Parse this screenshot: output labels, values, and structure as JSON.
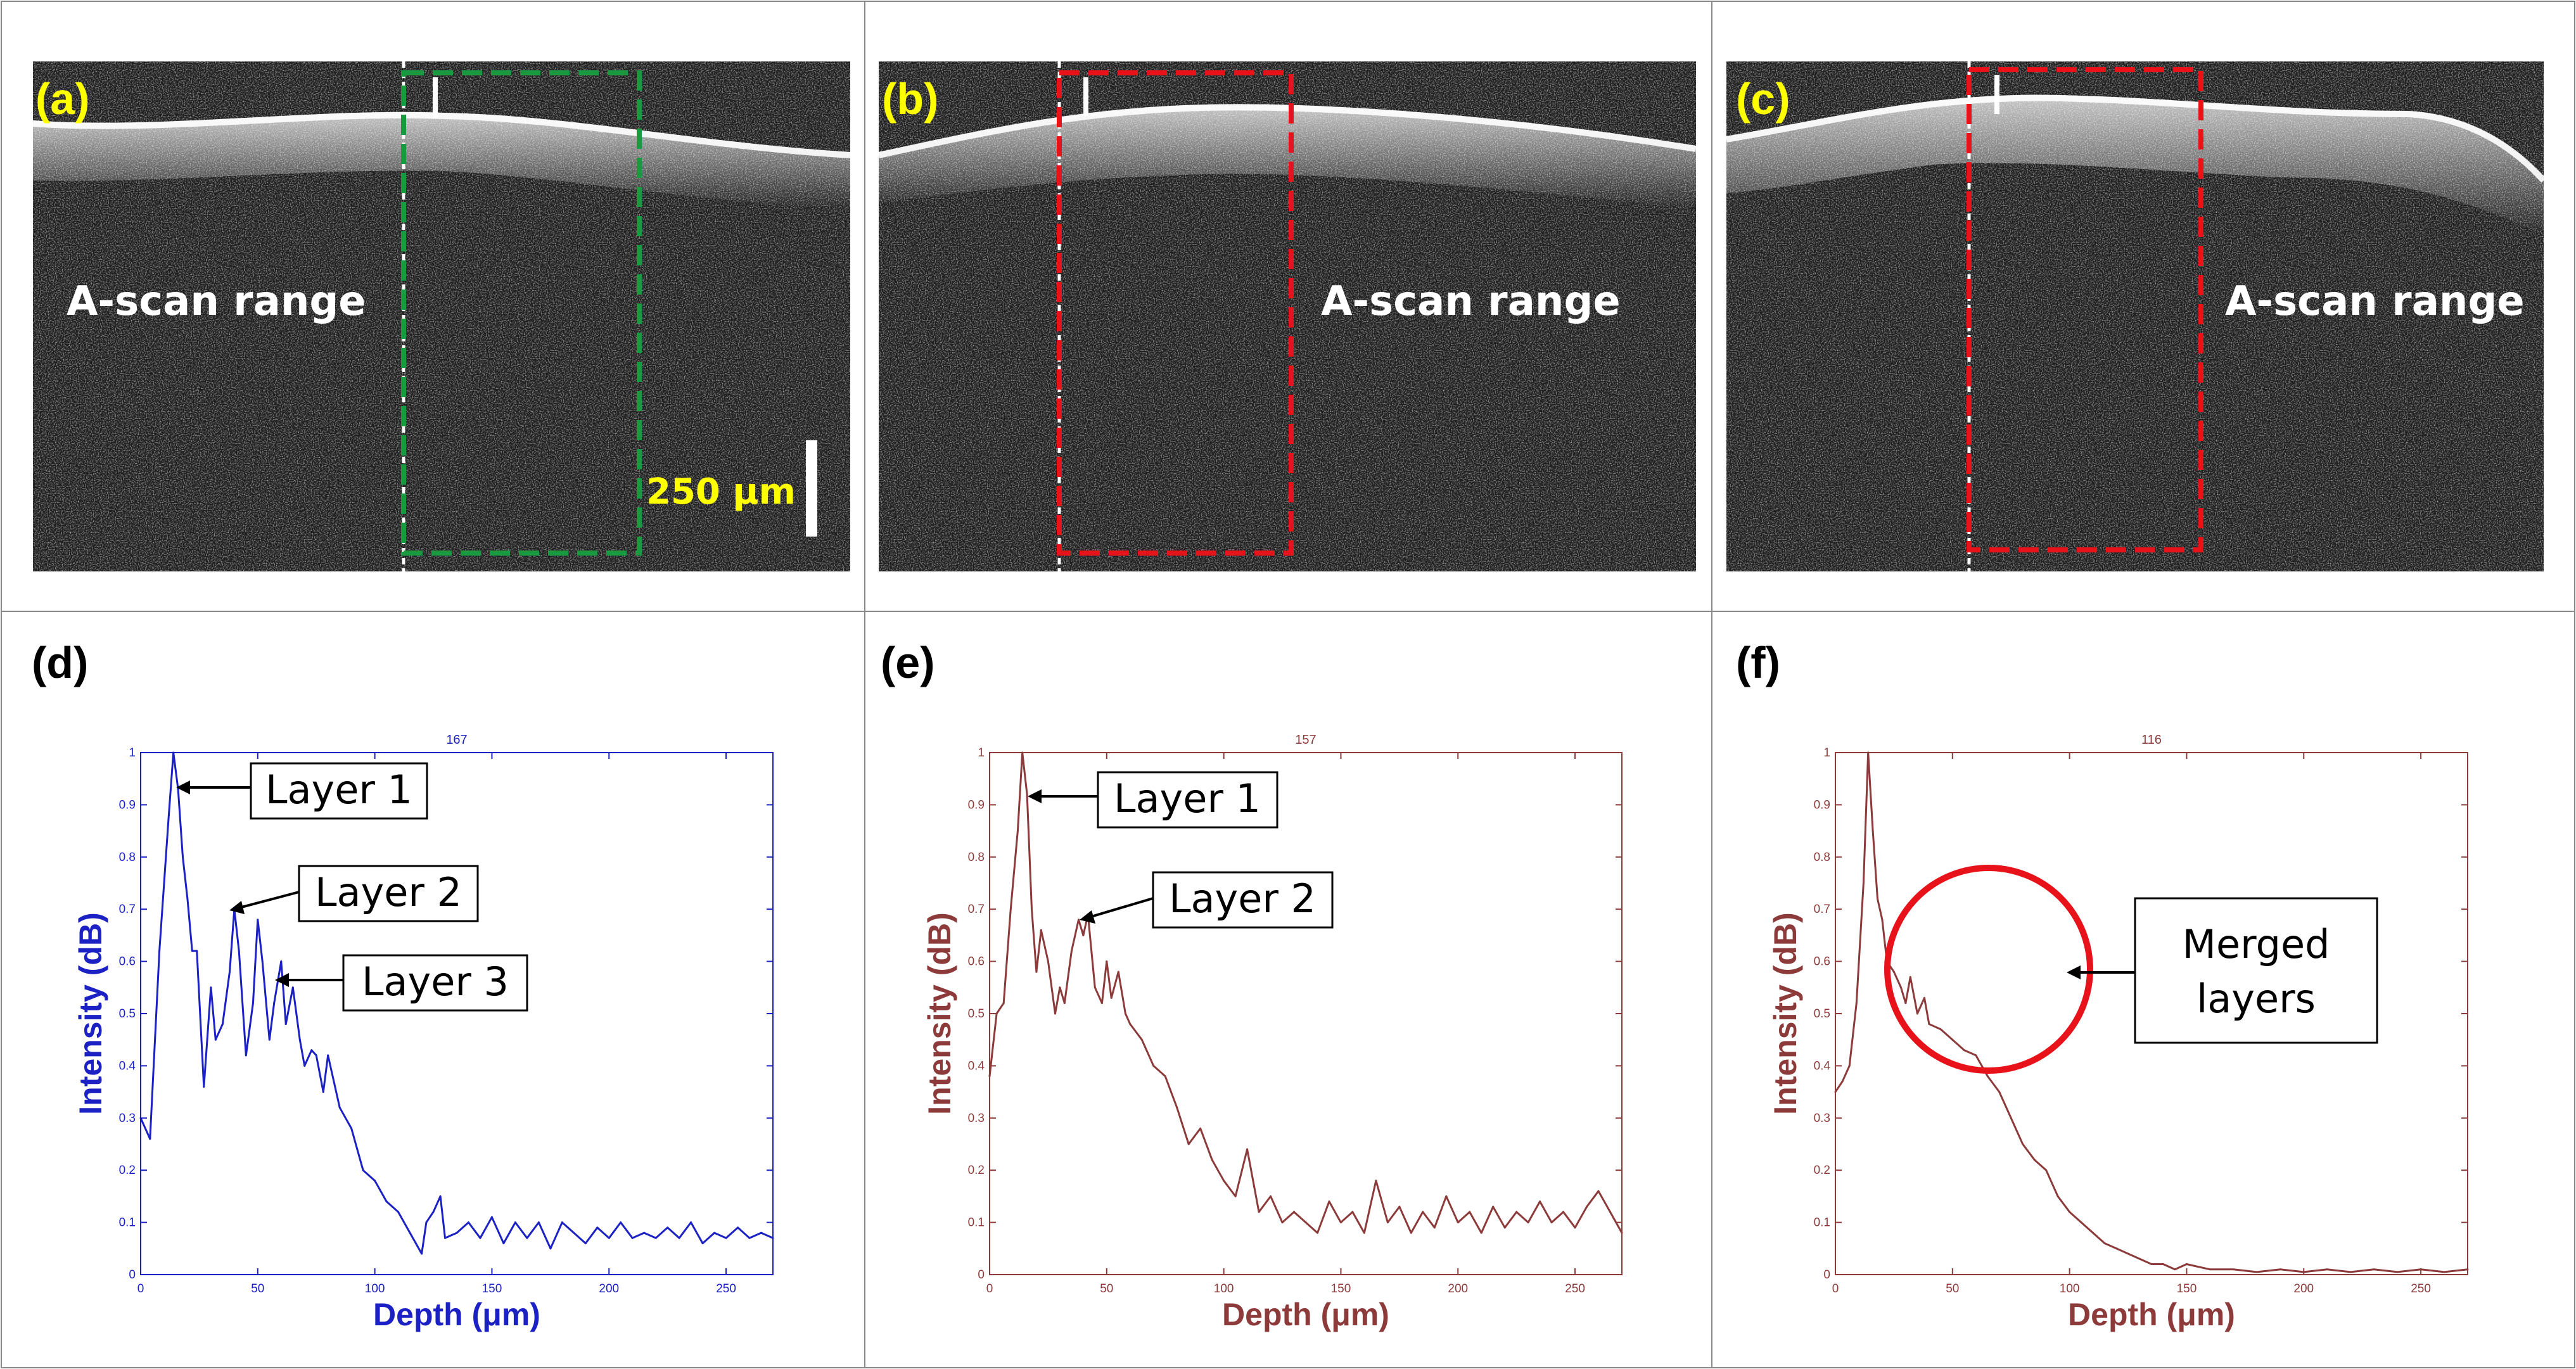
{
  "figure": {
    "panel_labels": [
      "(a)",
      "(b)",
      "(c)",
      "(d)",
      "(e)",
      "(f)"
    ],
    "scan_range_label": "A-scan range",
    "scale_bar_label": "250 μm",
    "colors": {
      "panel_a_box": "#1a9a40",
      "panel_bc_box": "#e8121b",
      "plot_d": "#1c21c4",
      "plot_ef": "#8c3a3a",
      "label_yellow": "#ffff00",
      "circle": "#e8121b"
    }
  },
  "annotations": {
    "d": [
      "Layer 1",
      "Layer 2",
      "Layer 3"
    ],
    "e": [
      "Layer 1",
      "Layer 2"
    ],
    "f": [
      "Merged",
      "layers"
    ]
  },
  "chart_data": [
    {
      "panel": "(d)",
      "type": "line",
      "title": "167",
      "xlabel": "Depth (μm)",
      "ylabel": "Intensity (dB)",
      "xlim": [
        0,
        270
      ],
      "ylim": [
        0,
        1
      ],
      "xticks": [
        "0",
        "50",
        "100",
        "150",
        "200",
        "250"
      ],
      "yticks": [
        "0",
        "0.1",
        "0.2",
        "0.3",
        "0.4",
        "0.5",
        "0.6",
        "0.7",
        "0.8",
        "0.9",
        "1"
      ],
      "x": [
        0,
        4,
        8,
        12,
        14,
        16,
        18,
        20,
        22,
        24,
        27,
        30,
        32,
        35,
        38,
        40,
        42,
        45,
        48,
        50,
        52,
        55,
        57,
        60,
        62,
        65,
        68,
        70,
        73,
        75,
        78,
        80,
        85,
        90,
        95,
        100,
        105,
        110,
        115,
        120,
        122,
        125,
        128,
        130,
        135,
        140,
        145,
        150,
        155,
        160,
        165,
        170,
        175,
        180,
        185,
        190,
        195,
        200,
        205,
        210,
        215,
        220,
        225,
        230,
        235,
        240,
        245,
        250,
        255,
        260,
        265,
        270
      ],
      "values": [
        0.3,
        0.26,
        0.62,
        0.88,
        1.0,
        0.93,
        0.8,
        0.72,
        0.62,
        0.62,
        0.36,
        0.55,
        0.45,
        0.48,
        0.58,
        0.7,
        0.62,
        0.42,
        0.52,
        0.68,
        0.6,
        0.45,
        0.52,
        0.6,
        0.48,
        0.55,
        0.45,
        0.4,
        0.43,
        0.42,
        0.35,
        0.42,
        0.32,
        0.28,
        0.2,
        0.18,
        0.14,
        0.12,
        0.08,
        0.04,
        0.1,
        0.12,
        0.15,
        0.07,
        0.08,
        0.1,
        0.07,
        0.11,
        0.06,
        0.1,
        0.07,
        0.1,
        0.05,
        0.1,
        0.08,
        0.06,
        0.09,
        0.07,
        0.1,
        0.07,
        0.08,
        0.07,
        0.09,
        0.07,
        0.1,
        0.06,
        0.08,
        0.07,
        0.09,
        0.07,
        0.08,
        0.07
      ]
    },
    {
      "panel": "(e)",
      "type": "line",
      "title": "157",
      "xlabel": "Depth (μm)",
      "ylabel": "Intensity (dB)",
      "xlim": [
        0,
        270
      ],
      "ylim": [
        0,
        1
      ],
      "xticks": [
        "0",
        "50",
        "100",
        "150",
        "200",
        "250"
      ],
      "yticks": [
        "0",
        "0.1",
        "0.2",
        "0.3",
        "0.4",
        "0.5",
        "0.6",
        "0.7",
        "0.8",
        "0.9",
        "1"
      ],
      "x": [
        0,
        3,
        6,
        9,
        12,
        14,
        16,
        18,
        20,
        22,
        25,
        28,
        30,
        32,
        35,
        38,
        40,
        42,
        45,
        48,
        50,
        52,
        55,
        58,
        60,
        65,
        70,
        75,
        80,
        85,
        90,
        95,
        100,
        105,
        110,
        115,
        120,
        125,
        130,
        135,
        140,
        145,
        150,
        155,
        160,
        165,
        170,
        175,
        180,
        185,
        190,
        195,
        200,
        205,
        210,
        215,
        220,
        225,
        230,
        235,
        240,
        245,
        250,
        255,
        260,
        265,
        270
      ],
      "values": [
        0.38,
        0.5,
        0.52,
        0.7,
        0.85,
        1.0,
        0.92,
        0.7,
        0.58,
        0.66,
        0.6,
        0.5,
        0.55,
        0.52,
        0.62,
        0.68,
        0.65,
        0.69,
        0.55,
        0.52,
        0.6,
        0.53,
        0.58,
        0.5,
        0.48,
        0.45,
        0.4,
        0.38,
        0.32,
        0.25,
        0.28,
        0.22,
        0.18,
        0.15,
        0.24,
        0.12,
        0.15,
        0.1,
        0.12,
        0.1,
        0.08,
        0.14,
        0.1,
        0.12,
        0.08,
        0.18,
        0.1,
        0.13,
        0.08,
        0.12,
        0.09,
        0.15,
        0.1,
        0.12,
        0.08,
        0.13,
        0.09,
        0.12,
        0.1,
        0.14,
        0.1,
        0.12,
        0.09,
        0.13,
        0.16,
        0.12,
        0.08
      ]
    },
    {
      "panel": "(f)",
      "type": "line",
      "title": "116",
      "xlabel": "Depth (μm)",
      "ylabel": "Intensity (dB)",
      "xlim": [
        0,
        270
      ],
      "ylim": [
        0,
        1
      ],
      "xticks": [
        "0",
        "50",
        "100",
        "150",
        "200",
        "250"
      ],
      "yticks": [
        "0",
        "0.1",
        "0.2",
        "0.3",
        "0.4",
        "0.5",
        "0.6",
        "0.7",
        "0.8",
        "0.9",
        "1"
      ],
      "x": [
        0,
        3,
        6,
        9,
        12,
        14,
        16,
        18,
        20,
        22,
        25,
        28,
        30,
        32,
        35,
        38,
        40,
        45,
        50,
        55,
        60,
        65,
        70,
        75,
        80,
        85,
        90,
        95,
        100,
        105,
        110,
        115,
        120,
        125,
        130,
        135,
        140,
        145,
        150,
        160,
        170,
        180,
        190,
        200,
        210,
        220,
        230,
        240,
        250,
        260,
        270
      ],
      "values": [
        0.35,
        0.37,
        0.4,
        0.52,
        0.75,
        1.0,
        0.85,
        0.72,
        0.68,
        0.6,
        0.58,
        0.55,
        0.52,
        0.57,
        0.5,
        0.53,
        0.48,
        0.47,
        0.45,
        0.43,
        0.42,
        0.38,
        0.35,
        0.3,
        0.25,
        0.22,
        0.2,
        0.15,
        0.12,
        0.1,
        0.08,
        0.06,
        0.05,
        0.04,
        0.03,
        0.02,
        0.02,
        0.01,
        0.02,
        0.01,
        0.01,
        0.005,
        0.01,
        0.005,
        0.01,
        0.005,
        0.01,
        0.005,
        0.01,
        0.005,
        0.01
      ]
    }
  ]
}
